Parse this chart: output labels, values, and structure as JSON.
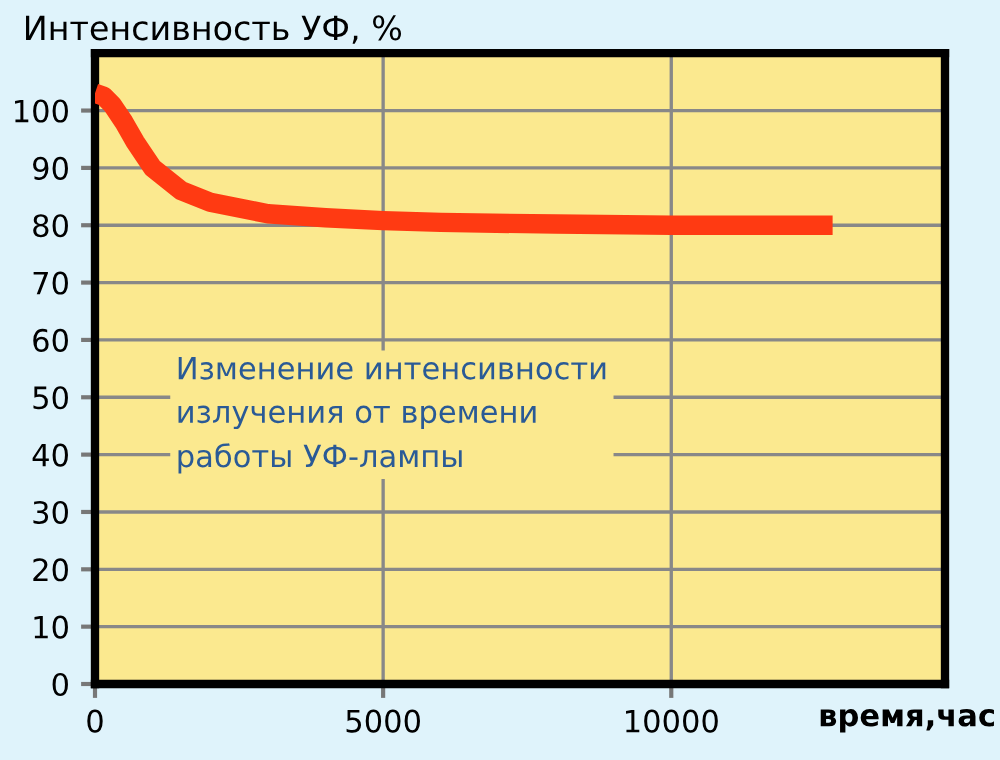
{
  "chart_data": {
    "type": "line",
    "ylabel": "Интенсивность УФ, %",
    "xlabel": "время,час",
    "annotations": [
      "Изменение интенсивности\nизлучения от времени\nработы УФ-лампы"
    ],
    "series": [
      {
        "color": "#ff3a12",
        "x": [
          0,
          150,
          300,
          500,
          700,
          1000,
          1500,
          2000,
          3000,
          4000,
          5000,
          6000,
          8000,
          10000,
          12800
        ],
        "values": [
          103,
          102.5,
          101,
          98,
          94.5,
          90,
          86,
          84,
          82,
          81.3,
          80.8,
          80.5,
          80.2,
          80,
          80
        ]
      }
    ],
    "xlim": [
      0,
      14750
    ],
    "xticks": [
      0,
      5000,
      10000
    ],
    "ylim": [
      0,
      110
    ],
    "yticks": [
      0,
      10,
      20,
      30,
      40,
      50,
      60,
      70,
      80,
      90,
      100
    ],
    "grid": true,
    "legend": false,
    "marker": "none",
    "line_style": "solid"
  }
}
